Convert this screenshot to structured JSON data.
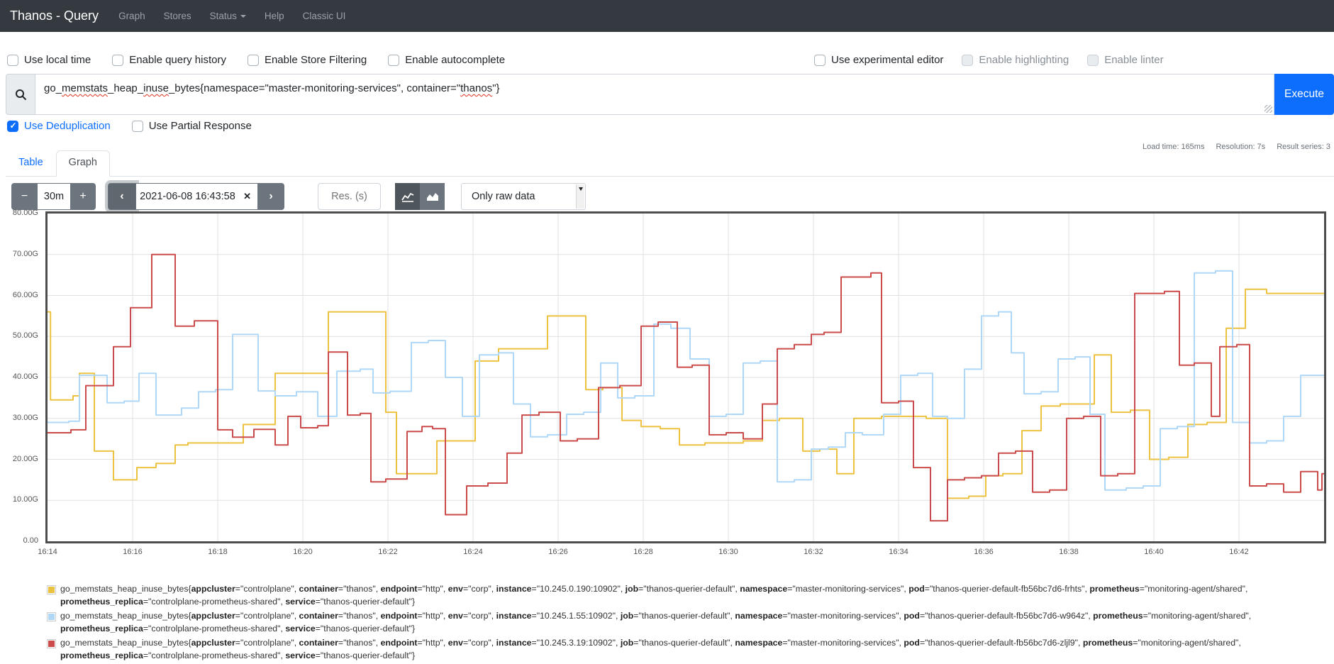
{
  "navbar": {
    "brand": "Thanos - Query",
    "links": [
      {
        "label": "Graph",
        "caret": false
      },
      {
        "label": "Stores",
        "caret": false
      },
      {
        "label": "Status",
        "caret": true
      },
      {
        "label": "Help",
        "caret": false
      },
      {
        "label": "Classic UI",
        "caret": false
      }
    ]
  },
  "options": {
    "left": [
      {
        "label": "Use local time",
        "checked": false,
        "disabled": false
      },
      {
        "label": "Enable query history",
        "checked": false,
        "disabled": false
      },
      {
        "label": "Enable Store Filtering",
        "checked": false,
        "disabled": false
      },
      {
        "label": "Enable autocomplete",
        "checked": false,
        "disabled": false
      }
    ],
    "right": [
      {
        "label": "Use experimental editor",
        "checked": false,
        "disabled": false
      },
      {
        "label": "Enable highlighting",
        "checked": false,
        "disabled": true
      },
      {
        "label": "Enable linter",
        "checked": false,
        "disabled": true
      }
    ]
  },
  "query": {
    "value": "go_memstats_heap_inuse_bytes{namespace=\"master-monitoring-services\", container=\"thanos\"}",
    "parts": [
      {
        "text": "go_",
        "misspelled": false
      },
      {
        "text": "memstats",
        "misspelled": true
      },
      {
        "text": "_heap_",
        "misspelled": false
      },
      {
        "text": "inuse",
        "misspelled": true
      },
      {
        "text": "_bytes{namespace=\"master-monitoring-services\", container=\"",
        "misspelled": false
      },
      {
        "text": "thanos",
        "misspelled": true
      },
      {
        "text": "\"}",
        "misspelled": false
      }
    ],
    "execute_label": "Execute"
  },
  "dedup_options": [
    {
      "label": "Use Deduplication",
      "checked": true,
      "disabled": false
    },
    {
      "label": "Use Partial Response",
      "checked": false,
      "disabled": false
    }
  ],
  "stats": {
    "load_time": "Load time: 165ms",
    "resolution": "Resolution: 7s",
    "result_series": "Result series: 3"
  },
  "tabs": [
    {
      "label": "Table",
      "active": false
    },
    {
      "label": "Graph",
      "active": true
    }
  ],
  "toolbar": {
    "range_minus": "−",
    "range_value": "30m",
    "range_plus": "+",
    "prev": "‹",
    "datetime": "2021-06-08 16:43:58",
    "clear": "✕",
    "next": "›",
    "res_placeholder": "Res. (s)",
    "raw_data_select": "Only raw data"
  },
  "chart_data": {
    "type": "line",
    "title": "",
    "xlabel": "",
    "ylabel": "",
    "unit": "bytes (G = GiB)",
    "x_axis": {
      "start": "16:14",
      "end": "16:44",
      "tick_labels": [
        "16:14",
        "16:16",
        "16:18",
        "16:20",
        "16:22",
        "16:24",
        "16:26",
        "16:28",
        "16:30",
        "16:32",
        "16:34",
        "16:36",
        "16:38",
        "16:40",
        "16:42"
      ],
      "tick_minutes": [
        0,
        2,
        4,
        6,
        8,
        10,
        12,
        14,
        16,
        18,
        20,
        22,
        24,
        26,
        28
      ],
      "total_minutes": 30
    },
    "y_axis": {
      "min": 0,
      "max": 80,
      "tick_values": [
        0,
        10,
        20,
        30,
        40,
        50,
        60,
        70,
        80
      ],
      "tick_labels": [
        "0.00",
        "10.00G",
        "20.00G",
        "30.00G",
        "40.00G",
        "50.00G",
        "60.00G",
        "70.00G",
        "80.00G"
      ]
    },
    "grid": true,
    "legend_position": "bottom",
    "series": [
      {
        "name": "go_memstats_heap_inuse_bytes instance=10.245.0.190:10902 pod=thanos-querier-default-fb56bc7d6-frhts",
        "color": "#edc240",
        "step_points": [
          [
            0,
            56
          ],
          [
            0.07,
            34.5
          ],
          [
            0.6,
            35.5
          ],
          [
            0.75,
            41
          ],
          [
            1.1,
            22
          ],
          [
            1.55,
            15
          ],
          [
            2.1,
            18
          ],
          [
            2.55,
            19
          ],
          [
            3.0,
            23.5
          ],
          [
            3.3,
            24
          ],
          [
            4.6,
            28.5
          ],
          [
            5.35,
            41
          ],
          [
            6.6,
            56
          ],
          [
            7.95,
            31.5
          ],
          [
            8.2,
            16.5
          ],
          [
            9.15,
            24.5
          ],
          [
            10.05,
            44
          ],
          [
            10.6,
            47
          ],
          [
            11.75,
            55
          ],
          [
            12.65,
            37
          ],
          [
            13.05,
            37.5
          ],
          [
            13.5,
            29.5
          ],
          [
            13.95,
            28
          ],
          [
            14.4,
            27.5
          ],
          [
            14.85,
            23.5
          ],
          [
            15.45,
            24
          ],
          [
            16.35,
            24.5
          ],
          [
            16.8,
            29.5
          ],
          [
            17.2,
            30
          ],
          [
            17.75,
            22
          ],
          [
            18.15,
            22.5
          ],
          [
            18.55,
            16.5
          ],
          [
            18.95,
            30
          ],
          [
            19.6,
            30.5
          ],
          [
            20.65,
            30
          ],
          [
            21.15,
            10.5
          ],
          [
            21.65,
            11
          ],
          [
            22.05,
            16
          ],
          [
            22.45,
            16.5
          ],
          [
            22.9,
            27
          ],
          [
            23.35,
            33
          ],
          [
            23.8,
            33.5
          ],
          [
            24.6,
            45.5
          ],
          [
            25.0,
            31.5
          ],
          [
            25.45,
            32
          ],
          [
            25.9,
            20
          ],
          [
            26.35,
            20.5
          ],
          [
            26.8,
            28.5
          ],
          [
            27.25,
            29
          ],
          [
            27.7,
            52
          ],
          [
            28.15,
            61.5
          ],
          [
            28.65,
            60.5
          ],
          [
            29.5,
            60.5
          ]
        ]
      },
      {
        "name": "go_memstats_heap_inuse_bytes instance=10.245.1.55:10902 pod=thanos-querier-default-fb56bc7d6-w964z",
        "color": "#afd8f8",
        "step_points": [
          [
            0,
            29
          ],
          [
            0.5,
            29.3
          ],
          [
            0.75,
            40.5
          ],
          [
            1.4,
            33.8
          ],
          [
            1.8,
            34.2
          ],
          [
            2.15,
            41
          ],
          [
            2.55,
            30.8
          ],
          [
            3.15,
            32.5
          ],
          [
            3.55,
            36.5
          ],
          [
            3.95,
            37
          ],
          [
            4.35,
            50.5
          ],
          [
            4.95,
            36.7
          ],
          [
            5.35,
            35.5
          ],
          [
            5.85,
            36.5
          ],
          [
            6.35,
            30.5
          ],
          [
            6.8,
            41.5
          ],
          [
            7.35,
            42
          ],
          [
            7.65,
            36.2
          ],
          [
            8.05,
            36.6
          ],
          [
            8.55,
            48.5
          ],
          [
            8.95,
            49
          ],
          [
            9.35,
            40
          ],
          [
            9.75,
            30.5
          ],
          [
            10.15,
            45.5
          ],
          [
            10.6,
            46
          ],
          [
            10.95,
            33.5
          ],
          [
            11.35,
            25.5
          ],
          [
            11.75,
            26
          ],
          [
            12.2,
            31
          ],
          [
            12.6,
            31.5
          ],
          [
            13.0,
            43.5
          ],
          [
            13.4,
            35
          ],
          [
            13.8,
            35.5
          ],
          [
            14.25,
            53
          ],
          [
            14.65,
            52
          ],
          [
            15.1,
            44.5
          ],
          [
            15.55,
            30.5
          ],
          [
            15.95,
            31
          ],
          [
            16.35,
            43.5
          ],
          [
            16.75,
            44
          ],
          [
            17.15,
            14.5
          ],
          [
            17.55,
            15
          ],
          [
            17.95,
            22.5
          ],
          [
            18.35,
            23
          ],
          [
            18.75,
            26.5
          ],
          [
            19.15,
            26
          ],
          [
            19.65,
            31
          ],
          [
            20.05,
            40.5
          ],
          [
            20.45,
            41
          ],
          [
            20.8,
            30.5
          ],
          [
            21.15,
            30
          ],
          [
            21.55,
            42
          ],
          [
            21.95,
            55
          ],
          [
            22.35,
            56
          ],
          [
            22.65,
            46
          ],
          [
            22.95,
            36
          ],
          [
            23.35,
            36.5
          ],
          [
            23.75,
            44.5
          ],
          [
            24.15,
            45
          ],
          [
            24.5,
            31
          ],
          [
            24.85,
            12.5
          ],
          [
            25.35,
            13
          ],
          [
            25.75,
            13.5
          ],
          [
            26.15,
            27.5
          ],
          [
            26.55,
            28
          ],
          [
            26.95,
            65.5
          ],
          [
            27.45,
            66
          ],
          [
            27.85,
            29
          ],
          [
            28.25,
            24
          ],
          [
            28.65,
            24.5
          ],
          [
            29.05,
            30.5
          ],
          [
            29.45,
            40.5
          ]
        ]
      },
      {
        "name": "go_memstats_heap_inuse_bytes instance=10.245.3.19:10902 pod=thanos-querier-default-fb56bc7d6-zljl9",
        "color": "#cb4b4b",
        "step_points": [
          [
            0,
            26.5
          ],
          [
            0.55,
            27.2
          ],
          [
            0.9,
            38
          ],
          [
            1.55,
            47.5
          ],
          [
            1.95,
            57
          ],
          [
            2.45,
            70
          ],
          [
            3.0,
            52.5
          ],
          [
            3.45,
            53.8
          ],
          [
            4.0,
            27.2
          ],
          [
            4.35,
            25.4
          ],
          [
            4.85,
            27.3
          ],
          [
            5.35,
            23.5
          ],
          [
            5.65,
            30.5
          ],
          [
            5.95,
            27.7
          ],
          [
            6.35,
            28.2
          ],
          [
            6.6,
            46.2
          ],
          [
            7.05,
            30.8
          ],
          [
            7.35,
            31.2
          ],
          [
            7.6,
            14.5
          ],
          [
            7.95,
            15.2
          ],
          [
            8.45,
            26.8
          ],
          [
            8.8,
            28
          ],
          [
            9.05,
            27.5
          ],
          [
            9.35,
            6.5
          ],
          [
            9.85,
            13.5
          ],
          [
            10.35,
            14.2
          ],
          [
            10.8,
            21.5
          ],
          [
            11.15,
            30.8
          ],
          [
            11.55,
            31.5
          ],
          [
            12.05,
            24.5
          ],
          [
            12.45,
            25
          ],
          [
            12.95,
            37.5
          ],
          [
            13.45,
            38
          ],
          [
            13.95,
            52.5
          ],
          [
            14.35,
            53.5
          ],
          [
            14.8,
            42.5
          ],
          [
            15.15,
            43
          ],
          [
            15.55,
            26
          ],
          [
            15.95,
            26.5
          ],
          [
            16.35,
            25
          ],
          [
            16.8,
            33.5
          ],
          [
            17.15,
            47
          ],
          [
            17.55,
            48
          ],
          [
            17.95,
            50.5
          ],
          [
            18.25,
            51
          ],
          [
            18.65,
            64.5
          ],
          [
            19.35,
            65.5
          ],
          [
            19.6,
            33.8
          ],
          [
            20.0,
            34.2
          ],
          [
            20.35,
            18
          ],
          [
            20.75,
            5
          ],
          [
            21.15,
            15
          ],
          [
            21.55,
            15.5
          ],
          [
            21.95,
            16
          ],
          [
            22.35,
            21.5
          ],
          [
            22.75,
            22
          ],
          [
            23.15,
            12
          ],
          [
            23.55,
            12.5
          ],
          [
            23.95,
            30
          ],
          [
            24.35,
            30.5
          ],
          [
            24.75,
            16
          ],
          [
            25.15,
            16.5
          ],
          [
            25.55,
            60.5
          ],
          [
            26.25,
            61
          ],
          [
            26.6,
            43
          ],
          [
            26.95,
            43.5
          ],
          [
            27.35,
            30.5
          ],
          [
            27.55,
            47.5
          ],
          [
            27.95,
            48
          ],
          [
            28.25,
            13.5
          ],
          [
            28.65,
            14
          ],
          [
            29.05,
            12
          ],
          [
            29.45,
            17
          ],
          [
            29.85,
            12.5
          ],
          [
            29.95,
            16.5
          ]
        ]
      }
    ]
  },
  "legend": {
    "metric": "go_memstats_heap_inuse_bytes",
    "series": [
      {
        "color": "#edc240",
        "labels": [
          [
            "appcluster",
            "controlplane"
          ],
          [
            "container",
            "thanos"
          ],
          [
            "endpoint",
            "http"
          ],
          [
            "env",
            "corp"
          ],
          [
            "instance",
            "10.245.0.190:10902"
          ],
          [
            "job",
            "thanos-querier-default"
          ],
          [
            "namespace",
            "master-monitoring-services"
          ],
          [
            "pod",
            "thanos-querier-default-fb56bc7d6-frhts"
          ],
          [
            "prometheus",
            "monitoring-agent/shared"
          ],
          [
            "prometheus_replica",
            "controlplane-prometheus-shared"
          ],
          [
            "service",
            "thanos-querier-default"
          ]
        ]
      },
      {
        "color": "#afd8f8",
        "labels": [
          [
            "appcluster",
            "controlplane"
          ],
          [
            "container",
            "thanos"
          ],
          [
            "endpoint",
            "http"
          ],
          [
            "env",
            "corp"
          ],
          [
            "instance",
            "10.245.1.55:10902"
          ],
          [
            "job",
            "thanos-querier-default"
          ],
          [
            "namespace",
            "master-monitoring-services"
          ],
          [
            "pod",
            "thanos-querier-default-fb56bc7d6-w964z"
          ],
          [
            "prometheus",
            "monitoring-agent/shared"
          ],
          [
            "prometheus_replica",
            "controlplane-prometheus-shared"
          ],
          [
            "service",
            "thanos-querier-default"
          ]
        ]
      },
      {
        "color": "#cb4b4b",
        "labels": [
          [
            "appcluster",
            "controlplane"
          ],
          [
            "container",
            "thanos"
          ],
          [
            "endpoint",
            "http"
          ],
          [
            "env",
            "corp"
          ],
          [
            "instance",
            "10.245.3.19:10902"
          ],
          [
            "job",
            "thanos-querier-default"
          ],
          [
            "namespace",
            "master-monitoring-services"
          ],
          [
            "pod",
            "thanos-querier-default-fb56bc7d6-zljl9"
          ],
          [
            "prometheus",
            "monitoring-agent/shared"
          ],
          [
            "prometheus_replica",
            "controlplane-prometheus-shared"
          ],
          [
            "service",
            "thanos-querier-default"
          ]
        ]
      }
    ]
  },
  "colors": {
    "navbar_bg": "#343a40",
    "accent_blue": "#0d6efd",
    "button_secondary": "#6c757d",
    "series_yellow": "#edc240",
    "series_blue": "#afd8f8",
    "series_red": "#cb4b4b"
  }
}
